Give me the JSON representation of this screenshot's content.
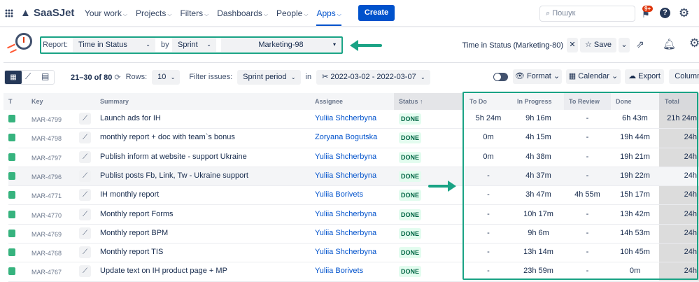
{
  "nav": {
    "brand": "SaaSJet",
    "items": [
      "Your work",
      "Projects",
      "Filters",
      "Dashboards",
      "People",
      "Apps"
    ],
    "active": "Apps",
    "create": "Create",
    "search_placeholder": "Пошук",
    "notifications_badge": "9+"
  },
  "report": {
    "label": "Report:",
    "type": "Time in Status",
    "by": "by",
    "group": "Sprint",
    "sprint": "Marketing-98",
    "saved_name": "Time in Status (Marketing-80)",
    "save": "Save"
  },
  "toolbar": {
    "pagination": "21–30 of 80",
    "rows_label": "Rows:",
    "rows": "10",
    "filter_label": "Filter issues:",
    "filter": "Sprint period",
    "in": "in",
    "date_range": "2022-03-02 - 2022-03-07",
    "format": "Format",
    "calendar": "Calendar",
    "export": "Export",
    "columns": "Columns"
  },
  "accent": "#1aa385",
  "table": {
    "headers": {
      "t": "T",
      "key": "Key",
      "summary": "Summary",
      "assignee": "Assignee",
      "status": "Status ↑",
      "todo": "To Do",
      "inprogress": "In Progress",
      "toreview": "To Review",
      "done": "Done",
      "total": "Total"
    },
    "rows": [
      {
        "key": "MAR-4799",
        "summary": "Launch ads for IH",
        "assignee": "Yuliia Shcherbyna",
        "status": "DONE",
        "todo": "5h 24m",
        "inprogress": "9h 16m",
        "toreview": "-",
        "done": "6h 43m",
        "total": "21h 24m"
      },
      {
        "key": "MAR-4798",
        "summary": "monthly report + doc with team`s bonus",
        "assignee": "Zoryana Bogutska",
        "status": "DONE",
        "todo": "0m",
        "inprogress": "4h 15m",
        "toreview": "-",
        "done": "19h 44m",
        "total": "24h"
      },
      {
        "key": "MAR-4797",
        "summary": "Publish inform at website - support Ukraine",
        "assignee": "Yuliia Shcherbyna",
        "status": "DONE",
        "todo": "0m",
        "inprogress": "4h 38m",
        "toreview": "-",
        "done": "19h 21m",
        "total": "24h"
      },
      {
        "key": "MAR-4796",
        "summary": "Publist posts Fb, Link, Tw - Ukraine support",
        "assignee": "Yuliia Shcherbyna",
        "status": "DONE",
        "todo": "-",
        "inprogress": "4h 37m",
        "toreview": "-",
        "done": "19h 22m",
        "total": "24h"
      },
      {
        "key": "MAR-4771",
        "summary": "IH monthly report",
        "assignee": "Yuliia Borivets",
        "status": "DONE",
        "todo": "-",
        "inprogress": "3h 47m",
        "toreview": "4h 55m",
        "done": "15h 17m",
        "total": "24h"
      },
      {
        "key": "MAR-4770",
        "summary": "Monthly report Forms",
        "assignee": "Yuliia Shcherbyna",
        "status": "DONE",
        "todo": "-",
        "inprogress": "10h 17m",
        "toreview": "-",
        "done": "13h 42m",
        "total": "24h"
      },
      {
        "key": "MAR-4769",
        "summary": "Monthly report BPM",
        "assignee": "Yuliia Shcherbyna",
        "status": "DONE",
        "todo": "-",
        "inprogress": "9h 6m",
        "toreview": "-",
        "done": "14h 53m",
        "total": "24h"
      },
      {
        "key": "MAR-4768",
        "summary": "Monthly report TIS",
        "assignee": "Yuliia Shcherbyna",
        "status": "DONE",
        "todo": "-",
        "inprogress": "13h 14m",
        "toreview": "-",
        "done": "10h 45m",
        "total": "24h"
      },
      {
        "key": "MAR-4767",
        "summary": "Update text on IH product page + MP",
        "assignee": "Yuliia Borivets",
        "status": "DONE",
        "todo": "-",
        "inprogress": "23h 59m",
        "toreview": "-",
        "done": "0m",
        "total": "24h"
      }
    ]
  }
}
